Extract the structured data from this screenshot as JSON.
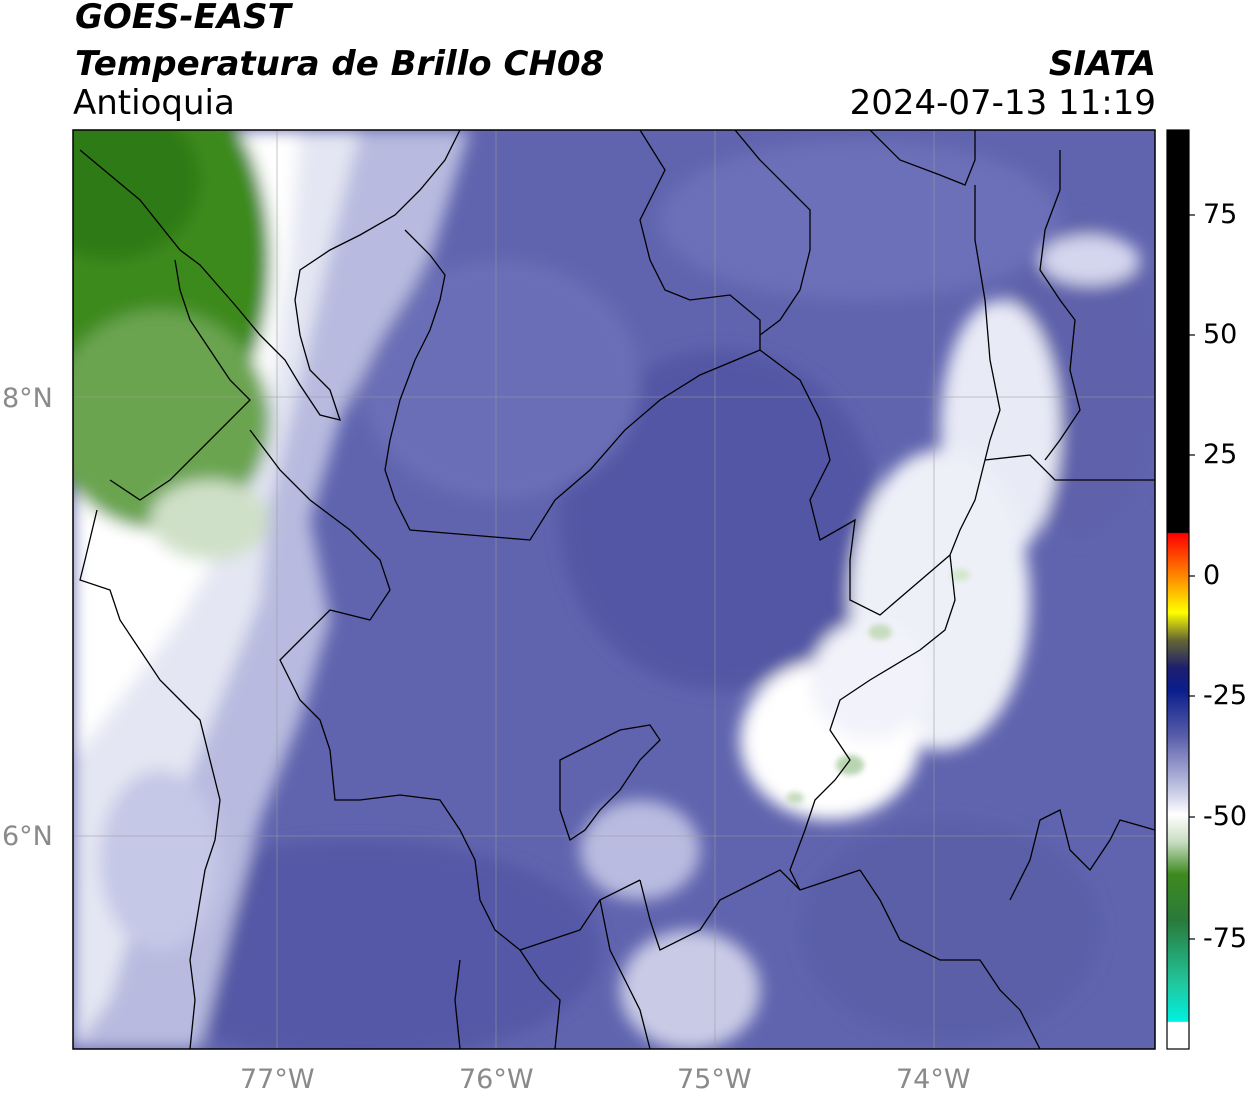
{
  "header": {
    "satellite": "GOES-EAST",
    "product": "Temperatura de Brillo CH08",
    "region": "Antioquia",
    "organization": "SIATA",
    "timestamp": "2024-07-13 11:19"
  },
  "map": {
    "lon_ticks": [
      "77°W",
      "76°W",
      "75°W",
      "74°W"
    ],
    "lat_ticks": [
      "8°N",
      "6°N"
    ],
    "extent": {
      "lon": [
        -77.95,
        -73.0
      ],
      "lat": [
        5.0,
        9.2
      ]
    },
    "gridlines": true
  },
  "colorbar": {
    "tick_labels": [
      "75",
      "50",
      "25",
      "0",
      "-25",
      "-50",
      "-75"
    ],
    "tick_values": [
      75,
      50,
      25,
      0,
      -25,
      -50,
      -75
    ],
    "range": [
      -95,
      90
    ],
    "colors": {
      "very_cold": "#ffffff",
      "cold_green": "#3e8a1f",
      "neutral": "#ffffff",
      "moist": "#6a6fb2",
      "warm_navy": "#1b1e6e",
      "hot": "#ff0000",
      "out_of_range": "#000000"
    }
  }
}
